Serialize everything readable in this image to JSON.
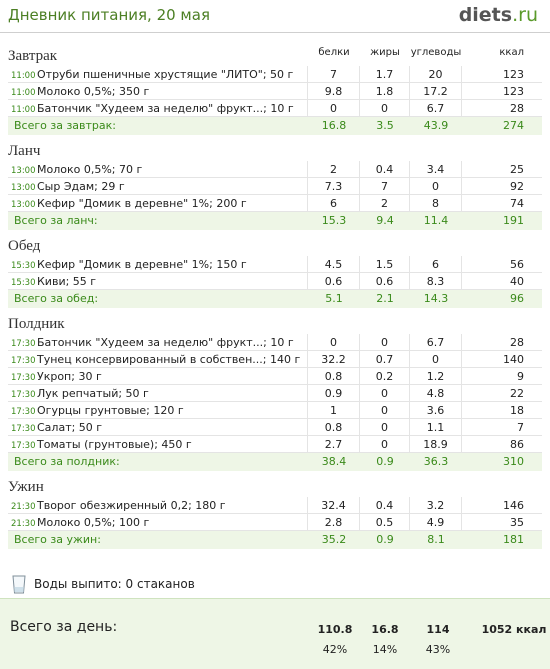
{
  "header": {
    "title": "Дневник питания, 20 мая",
    "logo_main": "diets",
    "logo_suffix": ".ru"
  },
  "columns": [
    "белки",
    "жиры",
    "углеводы",
    "ккал"
  ],
  "meals": [
    {
      "name": "Завтрак",
      "items": [
        {
          "time": "11:00",
          "food": "Отруби пшеничные хрустящие \"ЛИТО\"; 50 г",
          "values": [
            "7",
            "1.7",
            "20",
            "123"
          ]
        },
        {
          "time": "11:00",
          "food": "Молоко 0,5%; 350 г",
          "values": [
            "9.8",
            "1.8",
            "17.2",
            "123"
          ]
        },
        {
          "time": "11:00",
          "food": "Батончик \"Худеем за неделю\" фрукт...; 10 г",
          "values": [
            "0",
            "0",
            "6.7",
            "28"
          ]
        }
      ],
      "total": {
        "label": "Всего за завтрак:",
        "values": [
          "16.8",
          "3.5",
          "43.9",
          "274"
        ]
      }
    },
    {
      "name": "Ланч",
      "items": [
        {
          "time": "13:00",
          "food": "Молоко 0,5%; 70 г",
          "values": [
            "2",
            "0.4",
            "3.4",
            "25"
          ]
        },
        {
          "time": "13:00",
          "food": "Сыр Эдам; 29 г",
          "values": [
            "7.3",
            "7",
            "0",
            "92"
          ]
        },
        {
          "time": "13:00",
          "food": "Кефир \"Домик в деревне\" 1%; 200 г",
          "values": [
            "6",
            "2",
            "8",
            "74"
          ]
        }
      ],
      "total": {
        "label": "Всего за ланч:",
        "values": [
          "15.3",
          "9.4",
          "11.4",
          "191"
        ]
      }
    },
    {
      "name": "Обед",
      "items": [
        {
          "time": "15:30",
          "food": "Кефир \"Домик в деревне\" 1%; 150 г",
          "values": [
            "4.5",
            "1.5",
            "6",
            "56"
          ]
        },
        {
          "time": "15:30",
          "food": "Киви; 55 г",
          "values": [
            "0.6",
            "0.6",
            "8.3",
            "40"
          ]
        }
      ],
      "total": {
        "label": "Всего за обед:",
        "values": [
          "5.1",
          "2.1",
          "14.3",
          "96"
        ]
      }
    },
    {
      "name": "Полдник",
      "items": [
        {
          "time": "17:30",
          "food": "Батончик \"Худеем за неделю\" фрукт...; 10 г",
          "values": [
            "0",
            "0",
            "6.7",
            "28"
          ]
        },
        {
          "time": "17:30",
          "food": "Тунец консервированный в собствен...; 140 г",
          "values": [
            "32.2",
            "0.7",
            "0",
            "140"
          ]
        },
        {
          "time": "17:30",
          "food": "Укроп; 30 г",
          "values": [
            "0.8",
            "0.2",
            "1.2",
            "9"
          ]
        },
        {
          "time": "17:30",
          "food": "Лук репчатый; 50 г",
          "values": [
            "0.9",
            "0",
            "4.8",
            "22"
          ]
        },
        {
          "time": "17:30",
          "food": "Огурцы грунтовые; 120 г",
          "values": [
            "1",
            "0",
            "3.6",
            "18"
          ]
        },
        {
          "time": "17:30",
          "food": "Салат; 50 г",
          "values": [
            "0.8",
            "0",
            "1.1",
            "7"
          ]
        },
        {
          "time": "17:30",
          "food": "Томаты (грунтовые); 450 г",
          "values": [
            "2.7",
            "0",
            "18.9",
            "86"
          ]
        }
      ],
      "total": {
        "label": "Всего за полдник:",
        "values": [
          "38.4",
          "0.9",
          "36.3",
          "310"
        ]
      }
    },
    {
      "name": "Ужин",
      "items": [
        {
          "time": "21:30",
          "food": "Творог обезжиренный 0,2; 180 г",
          "values": [
            "32.4",
            "0.4",
            "3.2",
            "146"
          ]
        },
        {
          "time": "21:30",
          "food": "Молоко 0,5%; 100 г",
          "values": [
            "2.8",
            "0.5",
            "4.9",
            "35"
          ]
        }
      ],
      "total": {
        "label": "Всего за ужин:",
        "values": [
          "35.2",
          "0.9",
          "8.1",
          "181"
        ]
      }
    }
  ],
  "water": "Воды выпито: 0 стаканов",
  "day_total": {
    "label": "Всего за день:",
    "values": [
      "110.8",
      "16.8",
      "114",
      "1052 ккал"
    ],
    "percents": [
      "42%",
      "14%",
      "43%"
    ]
  }
}
